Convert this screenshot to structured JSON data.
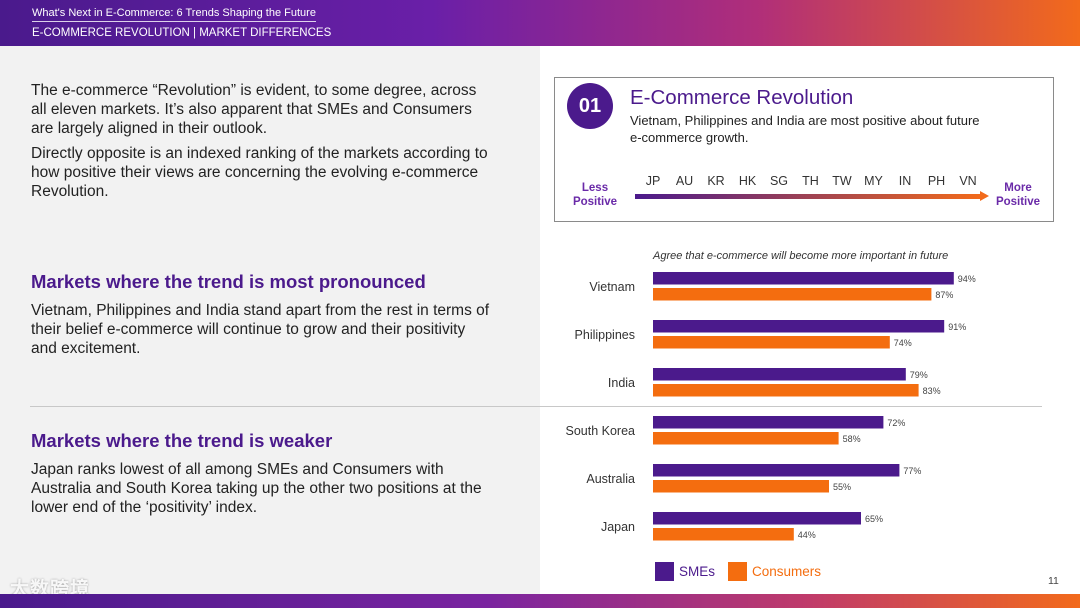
{
  "header": {
    "title": "What's Next in E-Commerce: 6 Trends Shaping the Future",
    "section": "E-COMMERCE REVOLUTION | MARKET DIFFERENCES"
  },
  "intro": {
    "para1": "The e-commerce “Revolution” is evident, to some degree, across all eleven markets. It’s also apparent that SMEs and Consumers are largely aligned in their outlook.",
    "para2": "Directly opposite is an indexed ranking of the markets according to how positive their views are concerning the evolving e-commerce Revolution."
  },
  "pronounced": {
    "heading": "Markets where the trend is most pronounced",
    "text": "Vietnam, Philippines and India stand apart from the rest in terms of their belief e-commerce will continue to grow and their positivity and excitement."
  },
  "weaker": {
    "heading": "Markets where the trend is weaker",
    "text": "Japan ranks lowest of all among SMEs and Consumers with Australia and South Korea taking up the other two positions at the lower end of the ‘positivity’ index."
  },
  "callout": {
    "number": "01",
    "title": "E-Commerce Revolution",
    "subtitle": "Vietnam, Philippines and India are most positive about future e-commerce growth.",
    "less_label": "Less Positive",
    "more_label": "More Positive",
    "markets": [
      "JP",
      "AU",
      "KR",
      "HK",
      "SG",
      "TH",
      "TW",
      "MY",
      "IN",
      "PH",
      "VN"
    ]
  },
  "chart_data": {
    "type": "bar",
    "orientation": "horizontal",
    "title": "Agree that e-commerce will become more important in future",
    "categories": [
      "Vietnam",
      "Philippines",
      "India",
      "South Korea",
      "Australia",
      "Japan"
    ],
    "series": [
      {
        "name": "SMEs",
        "color": "#4b1a8c",
        "values": [
          94,
          91,
          79,
          72,
          77,
          65
        ]
      },
      {
        "name": "Consumers",
        "color": "#f46d0f",
        "values": [
          87,
          74,
          83,
          58,
          55,
          44
        ]
      }
    ],
    "value_suffix": "%",
    "xlim": [
      0,
      100
    ],
    "legend": "bottom"
  },
  "page_number": "11",
  "watermark": "大数跨境"
}
